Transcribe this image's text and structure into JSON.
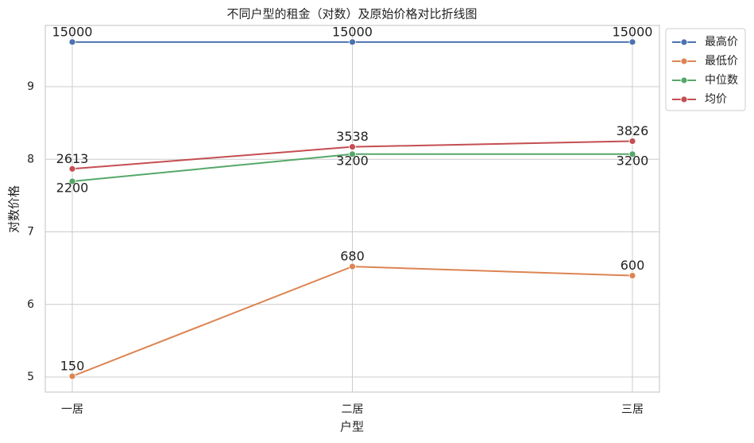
{
  "chart_data": {
    "type": "line",
    "title": "不同户型的租金（对数）及原始价格对比折线图",
    "x_label": "户型",
    "y_label": "对数价格",
    "categories": [
      "一居",
      "二居",
      "三居"
    ],
    "series": [
      {
        "name": "最高价",
        "color": "#4c72b0",
        "values": [
          9.6158,
          9.6158,
          9.6158
        ],
        "value_labels": [
          "15000",
          "15000",
          "15000"
        ]
      },
      {
        "name": "最低价",
        "color": "#dd8452",
        "values": [
          5.0106,
          6.5221,
          6.3969
        ],
        "value_labels": [
          "150",
          "680",
          "600"
        ]
      },
      {
        "name": "中位数",
        "color": "#55a868",
        "values": [
          7.6962,
          8.0709,
          8.0709
        ],
        "value_labels": [
          "2200",
          "3200",
          "3200"
        ]
      },
      {
        "name": "均价",
        "color": "#c44e52",
        "values": [
          7.8682,
          8.1713,
          8.2496
        ],
        "value_labels": [
          "2613",
          "3538",
          "3826"
        ]
      }
    ],
    "ylim": [
      4.792,
      9.844
    ],
    "yticks": [
      5,
      6,
      7,
      8,
      9
    ],
    "grid": true,
    "legend": "outside-upper-right"
  }
}
